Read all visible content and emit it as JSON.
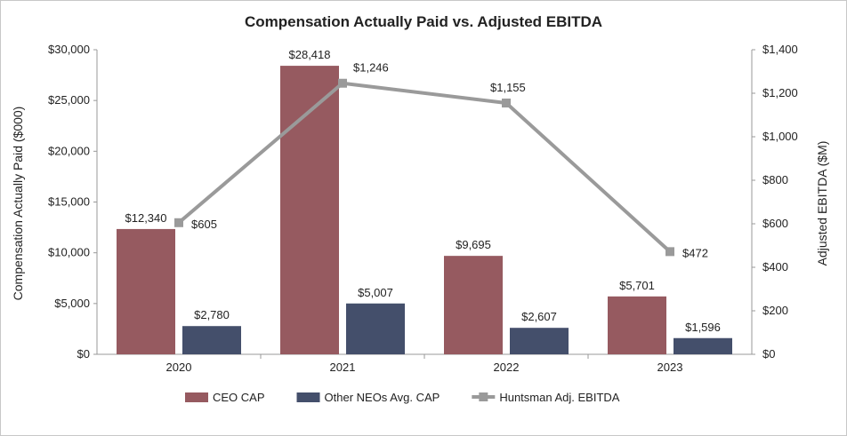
{
  "chart_data": {
    "type": "bar",
    "title": "Compensation Actually Paid vs. Adjusted EBITDA",
    "categories": [
      "2020",
      "2021",
      "2022",
      "2023"
    ],
    "ylabel_left": "Compensation Actually Paid ($000)",
    "ylabel_right": "Adjusted EBITDA ($M)",
    "ylim_left": [
      0,
      30000
    ],
    "ylim_right": [
      0,
      1400
    ],
    "yticks_left": [
      "$0",
      "$5,000",
      "$10,000",
      "$15,000",
      "$20,000",
      "$25,000",
      "$30,000"
    ],
    "yticks_right": [
      "$0",
      "$200",
      "$400",
      "$600",
      "$800",
      "$1,000",
      "$1,200",
      "$1,400"
    ],
    "series": [
      {
        "name": "CEO CAP",
        "kind": "bar",
        "axis": "left",
        "color": "#965a60",
        "values": [
          12340,
          28418,
          9695,
          5701
        ],
        "labels": [
          "$12,340",
          "$28,418",
          "$9,695",
          "$5,701"
        ]
      },
      {
        "name": "Other NEOs Avg. CAP",
        "kind": "bar",
        "axis": "left",
        "color": "#444f6b",
        "values": [
          2780,
          5007,
          2607,
          1596
        ],
        "labels": [
          "$2,780",
          "$5,007",
          "$2,607",
          "$1,596"
        ]
      },
      {
        "name": "Huntsman Adj. EBITDA",
        "kind": "line",
        "axis": "right",
        "color": "#9a9a9a",
        "values": [
          605,
          1246,
          1155,
          472
        ],
        "labels": [
          "$605",
          "$1,246",
          "$1,155",
          "$472"
        ]
      }
    ],
    "legend": "bottom",
    "grid": false
  }
}
